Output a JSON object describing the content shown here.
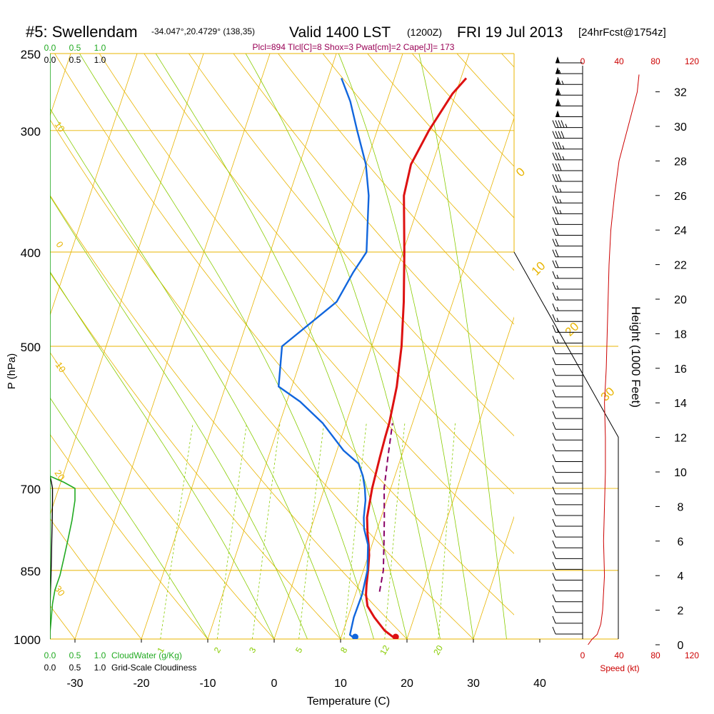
{
  "header": {
    "station": "#5: Swellendam",
    "coords": "-34.047°,20.4729° (138,35)",
    "valid": "Valid 1400 LST",
    "zulu": "(1200Z)",
    "date": "FRI 19 Jul 2013",
    "forecast": "[24hrFcst@1754z]",
    "indices": "Plcl=894 Tlcl[C]=8 Shox=3 Pwat[cm]=2 Cape[J]= 173"
  },
  "colors": {
    "isotherm": "#e8b400",
    "dry_adiabat": "#e8b400",
    "moist_adiabat": "#88cc00",
    "mixing_ratio": "#88cc00",
    "temperature": "#dd1111",
    "dewpoint": "#1166dd",
    "parcel": "#880066",
    "cloud": "#22aa22",
    "wind": "#000000",
    "speed": "#cc0000",
    "indices": "#990055"
  },
  "chart_data": {
    "type": "line",
    "chart_kind": "skew-t log-p sounding",
    "xlabel": "Temperature (C)",
    "ylabel": "P (hPa)",
    "y2label": "Height (1000 Feet)",
    "x_ticks": [
      "-30",
      "-20",
      "-10",
      "0",
      "10",
      "20",
      "30",
      "40"
    ],
    "pressure_levels": [
      250,
      300,
      400,
      500,
      700,
      850,
      1000
    ],
    "pressure_labels": [
      "250",
      "300",
      "400",
      "500",
      "700",
      "850",
      "1000"
    ],
    "height_ticks": [
      "0",
      "2",
      "4",
      "6",
      "8",
      "10",
      "12",
      "14",
      "16",
      "18",
      "20",
      "22",
      "24",
      "26",
      "28",
      "30",
      "32"
    ],
    "mixing_ratio_labels": [
      "1",
      "2",
      "3",
      "5",
      "8",
      "12",
      "20"
    ],
    "theta_labels": [
      "10",
      "0",
      "-10",
      "20",
      "30"
    ],
    "thetae_labels": [
      "0",
      "10",
      "20",
      "30"
    ],
    "cloud_axis": {
      "top_water_ticks": [
        "0.0",
        "0.5",
        "1.0"
      ],
      "top_cloud_ticks": [
        "0.0",
        "0.5",
        "1.0"
      ],
      "bottom_water_ticks": [
        "0.0",
        "0.5",
        "1.0"
      ],
      "bottom_cloud_ticks": [
        "0.0",
        "0.5",
        "1.0"
      ],
      "water_label": "CloudWater (g/Kg)",
      "cloud_label": "Grid-Scale Cloudiness"
    },
    "speed_axis": {
      "ticks": [
        "0",
        "40",
        "80",
        "120"
      ],
      "label": "Speed (kt)"
    },
    "series": [
      {
        "name": "temperature",
        "points": [
          [
            1000,
            18.3
          ],
          [
            980,
            16.2
          ],
          [
            950,
            14.0
          ],
          [
            925,
            12.4
          ],
          [
            900,
            11.6
          ],
          [
            880,
            11.2
          ],
          [
            850,
            10.7
          ],
          [
            820,
            10.1
          ],
          [
            800,
            9.5
          ],
          [
            780,
            8.8
          ],
          [
            750,
            7.9
          ],
          [
            700,
            7.2
          ],
          [
            650,
            6.8
          ],
          [
            620,
            6.6
          ],
          [
            600,
            6.5
          ],
          [
            550,
            5.8
          ],
          [
            500,
            4.5
          ],
          [
            450,
            2.6
          ],
          [
            400,
            0.2
          ],
          [
            350,
            -2.7
          ],
          [
            325,
            -3.2
          ],
          [
            300,
            -2.2
          ],
          [
            275,
            -0.5
          ],
          [
            265,
            0.8
          ]
        ]
      },
      {
        "name": "dewpoint",
        "points": [
          [
            1000,
            12.2
          ],
          [
            990,
            11.2
          ],
          [
            950,
            10.9
          ],
          [
            900,
            11.0
          ],
          [
            850,
            10.6
          ],
          [
            800,
            9.4
          ],
          [
            770,
            8.0
          ],
          [
            750,
            7.4
          ],
          [
            720,
            6.8
          ],
          [
            700,
            6.1
          ],
          [
            680,
            5.2
          ],
          [
            660,
            3.9
          ],
          [
            640,
            1.0
          ],
          [
            600,
            -3.5
          ],
          [
            570,
            -8.0
          ],
          [
            550,
            -12.0
          ],
          [
            500,
            -13.5
          ],
          [
            450,
            -7.5
          ],
          [
            420,
            -6.5
          ],
          [
            400,
            -5.5
          ],
          [
            350,
            -8.0
          ],
          [
            325,
            -10.0
          ],
          [
            300,
            -13.0
          ],
          [
            280,
            -15.5
          ],
          [
            265,
            -18.0
          ]
        ]
      },
      {
        "name": "parcel",
        "points": [
          [
            894,
            13.5
          ],
          [
            850,
            13.0
          ],
          [
            800,
            11.8
          ],
          [
            750,
            10.5
          ],
          [
            700,
            9.0
          ],
          [
            650,
            8.0
          ],
          [
            600,
            7.0
          ]
        ]
      }
    ],
    "surface_points": {
      "temperature": 18.3,
      "dewpoint": 12.2
    },
    "cloud_water_profile": [
      [
        1000,
        0
      ],
      [
        985,
        0
      ],
      [
        960,
        0.02
      ],
      [
        920,
        0.05
      ],
      [
        890,
        0.1
      ],
      [
        860,
        0.2
      ],
      [
        825,
        0.28
      ],
      [
        790,
        0.36
      ],
      [
        755,
        0.44
      ],
      [
        720,
        0.5
      ],
      [
        700,
        0.5
      ],
      [
        690,
        0.28
      ],
      [
        680,
        0
      ]
    ],
    "wind_speed_profile_kt": [
      [
        0,
        6
      ],
      [
        0.3,
        10
      ],
      [
        0.6,
        16
      ],
      [
        1.2,
        20
      ],
      [
        2,
        22
      ],
      [
        4,
        24
      ],
      [
        6,
        23
      ],
      [
        8,
        24
      ],
      [
        10,
        25
      ],
      [
        12,
        25
      ],
      [
        14,
        24
      ],
      [
        16,
        26
      ],
      [
        18,
        27
      ],
      [
        20,
        28
      ],
      [
        22,
        29
      ],
      [
        24,
        31
      ],
      [
        26,
        35
      ],
      [
        28,
        40
      ],
      [
        30,
        50
      ],
      [
        32,
        60
      ],
      [
        33,
        62
      ]
    ],
    "wind_barbs_kt": [
      10,
      10,
      10,
      10,
      10,
      10,
      10,
      10,
      10,
      10,
      10,
      10,
      10,
      10,
      10,
      10,
      10,
      10,
      10,
      10,
      10,
      10,
      10,
      10,
      10,
      10,
      10,
      15,
      15,
      15,
      15,
      15,
      15,
      15,
      20,
      20,
      20,
      20,
      20,
      25,
      25,
      25,
      30,
      30,
      35,
      35,
      40,
      45,
      50,
      60,
      60,
      65,
      55,
      50
    ],
    "wind_dir_deg": [
      270,
      270,
      270,
      270,
      270,
      270,
      270,
      270,
      270,
      270,
      270,
      270,
      270,
      270,
      270,
      270,
      270,
      270,
      270,
      270,
      270,
      270,
      270,
      270,
      270,
      270,
      270,
      270,
      270,
      270,
      270,
      270,
      270,
      270,
      270,
      270,
      270,
      270,
      270,
      270,
      270,
      270,
      270,
      270,
      270,
      270,
      270,
      270,
      270,
      270,
      270,
      270,
      270,
      270
    ]
  }
}
